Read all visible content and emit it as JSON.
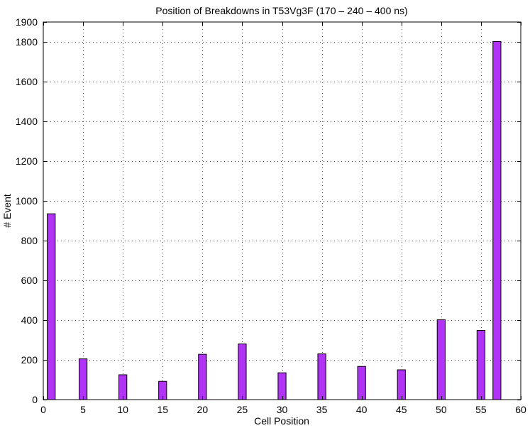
{
  "chart_data": {
    "type": "bar",
    "title": "Position of Breakdowns in T53Vg3F (170 – 240 – 400 ns)",
    "xlabel": "Cell Position",
    "ylabel": "# Event",
    "xlim": [
      0,
      60
    ],
    "ylim": [
      0,
      1900
    ],
    "x_ticks": [
      0,
      5,
      10,
      15,
      20,
      25,
      30,
      35,
      40,
      45,
      50,
      55,
      60
    ],
    "y_ticks": [
      0,
      200,
      400,
      600,
      800,
      1000,
      1200,
      1400,
      1600,
      1800,
      1900
    ],
    "grid": true,
    "bar_color": "#b133f5",
    "bar_width": 1,
    "x": [
      1,
      5,
      10,
      15,
      20,
      25,
      30,
      35,
      40,
      45,
      50,
      55,
      57
    ],
    "values": [
      935,
      205,
      125,
      92,
      228,
      280,
      135,
      230,
      167,
      150,
      402,
      348,
      1802
    ]
  }
}
